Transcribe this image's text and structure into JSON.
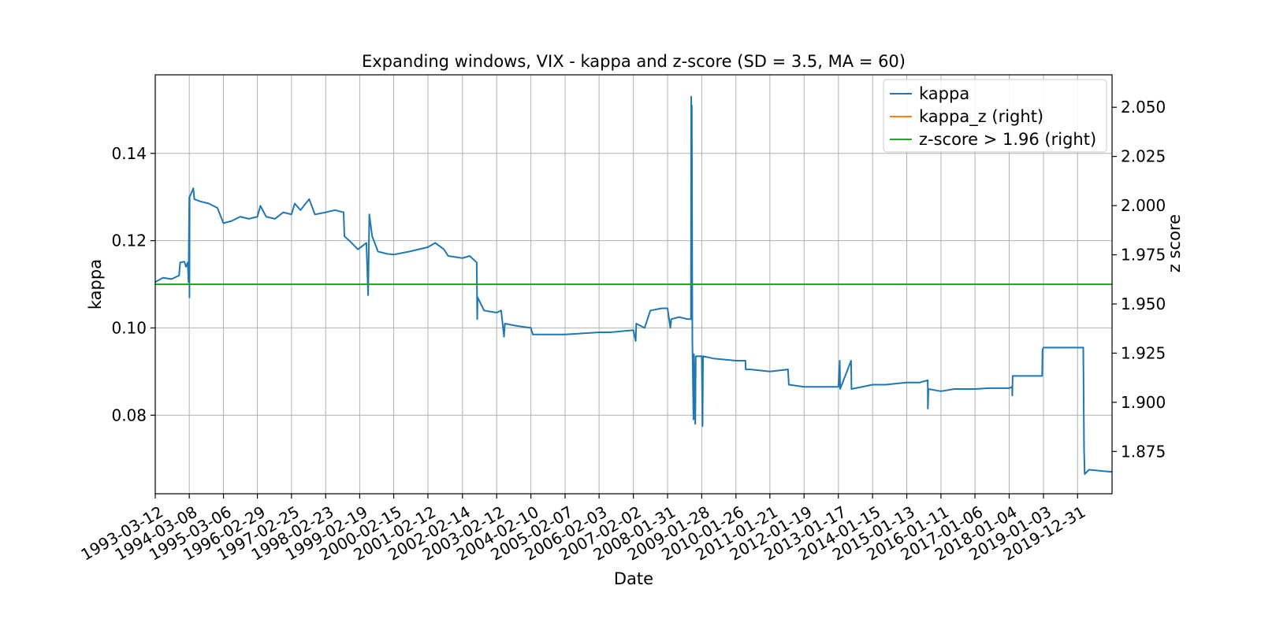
{
  "chart_data": {
    "type": "line",
    "title": "Expanding windows, VIX - kappa and z-score (SD = 3.5, MA = 60)",
    "xlabel": "Date",
    "ylabel": "kappa",
    "y2label": "z score",
    "grid": true,
    "legend_position": "top-right",
    "xlim": [
      "1993-03-12",
      "2020-12-31"
    ],
    "ylim": [
      0.062,
      0.158
    ],
    "y2lim": [
      1.8535,
      2.0665
    ],
    "x_ticks": [
      "1993-03-12",
      "1994-03-08",
      "1995-03-06",
      "1996-02-29",
      "1997-02-25",
      "1998-02-23",
      "1999-02-19",
      "2000-02-15",
      "2001-02-12",
      "2002-02-14",
      "2003-02-12",
      "2004-02-10",
      "2005-02-07",
      "2006-02-03",
      "2007-02-02",
      "2008-01-31",
      "2009-01-28",
      "2010-01-26",
      "2011-01-21",
      "2012-01-19",
      "2013-01-17",
      "2014-01-15",
      "2015-01-13",
      "2016-01-11",
      "2017-01-06",
      "2018-01-04",
      "2019-01-03",
      "2019-12-31"
    ],
    "y_ticks": [
      {
        "value": 0.08,
        "label": "0.08"
      },
      {
        "value": 0.1,
        "label": "0.10"
      },
      {
        "value": 0.12,
        "label": "0.12"
      },
      {
        "value": 0.14,
        "label": "0.14"
      }
    ],
    "y2_ticks": [
      {
        "value": 1.875,
        "label": "1.875"
      },
      {
        "value": 1.9,
        "label": "1.900"
      },
      {
        "value": 1.925,
        "label": "1.925"
      },
      {
        "value": 1.95,
        "label": "1.950"
      },
      {
        "value": 1.975,
        "label": "1.975"
      },
      {
        "value": 2.0,
        "label": "2.000"
      },
      {
        "value": 2.025,
        "label": "2.025"
      },
      {
        "value": 2.05,
        "label": "2.050"
      }
    ],
    "series": [
      {
        "name": "kappa",
        "axis": "left",
        "color": "#1f77b4",
        "points": [
          [
            "1993-03-12",
            0.1105
          ],
          [
            "1993-06-01",
            0.1115
          ],
          [
            "1993-09-01",
            0.1112
          ],
          [
            "1993-11-20",
            0.112
          ],
          [
            "1993-12-01",
            0.115
          ],
          [
            "1994-01-15",
            0.1152
          ],
          [
            "1994-02-01",
            0.114
          ],
          [
            "1994-02-20",
            0.115
          ],
          [
            "1994-02-28",
            0.1105
          ],
          [
            "1994-03-08",
            0.13
          ],
          [
            "1994-03-10",
            0.107
          ],
          [
            "1994-03-12",
            0.13
          ],
          [
            "1994-04-20",
            0.132
          ],
          [
            "1994-05-01",
            0.1295
          ],
          [
            "1994-07-01",
            0.129
          ],
          [
            "1994-10-01",
            0.1285
          ],
          [
            "1995-01-01",
            0.1275
          ],
          [
            "1995-03-06",
            0.124
          ],
          [
            "1995-06-01",
            0.1245
          ],
          [
            "1995-09-01",
            0.1255
          ],
          [
            "1995-12-01",
            0.125
          ],
          [
            "1996-02-29",
            0.1255
          ],
          [
            "1996-04-01",
            0.128
          ],
          [
            "1996-06-01",
            0.1255
          ],
          [
            "1996-09-01",
            0.125
          ],
          [
            "1996-12-01",
            0.1265
          ],
          [
            "1997-02-25",
            0.126
          ],
          [
            "1997-04-01",
            0.1285
          ],
          [
            "1997-06-01",
            0.127
          ],
          [
            "1997-09-01",
            0.1295
          ],
          [
            "1997-11-01",
            0.126
          ],
          [
            "1998-02-23",
            0.1265
          ],
          [
            "1998-06-01",
            0.127
          ],
          [
            "1998-09-01",
            0.1265
          ],
          [
            "1998-09-10",
            0.121
          ],
          [
            "1998-11-01",
            0.12
          ],
          [
            "1999-02-01",
            0.118
          ],
          [
            "1999-05-01",
            0.1195
          ],
          [
            "1999-05-20",
            0.1075
          ],
          [
            "1999-06-01",
            0.126
          ],
          [
            "1999-07-01",
            0.121
          ],
          [
            "1999-09-01",
            0.1175
          ],
          [
            "1999-12-01",
            0.117
          ],
          [
            "2000-02-15",
            0.1168
          ],
          [
            "2000-08-01",
            0.1175
          ],
          [
            "2001-02-12",
            0.1185
          ],
          [
            "2001-05-01",
            0.1195
          ],
          [
            "2001-08-01",
            0.118
          ],
          [
            "2001-09-15",
            0.1165
          ],
          [
            "2002-02-14",
            0.116
          ],
          [
            "2002-05-01",
            0.1165
          ],
          [
            "2002-07-15",
            0.115
          ],
          [
            "2002-07-20",
            0.102
          ],
          [
            "2002-07-25",
            0.107
          ],
          [
            "2002-10-01",
            0.104
          ],
          [
            "2003-02-12",
            0.1035
          ],
          [
            "2003-04-01",
            0.104
          ],
          [
            "2003-05-01",
            0.098
          ],
          [
            "2003-05-10",
            0.101
          ],
          [
            "2003-09-01",
            0.1005
          ],
          [
            "2004-02-10",
            0.1
          ],
          [
            "2004-03-01",
            0.0985
          ],
          [
            "2005-02-07",
            0.0985
          ],
          [
            "2006-02-03",
            0.099
          ],
          [
            "2006-06-01",
            0.099
          ],
          [
            "2007-02-02",
            0.0995
          ],
          [
            "2007-02-27",
            0.097
          ],
          [
            "2007-03-05",
            0.101
          ],
          [
            "2007-06-01",
            0.1
          ],
          [
            "2007-08-01",
            0.104
          ],
          [
            "2007-12-01",
            0.1045
          ],
          [
            "2008-01-31",
            0.1045
          ],
          [
            "2008-03-01",
            0.1
          ],
          [
            "2008-03-10",
            0.102
          ],
          [
            "2008-06-01",
            0.1025
          ],
          [
            "2008-09-01",
            0.102
          ],
          [
            "2008-10-05",
            0.102
          ],
          [
            "2008-10-08",
            0.153
          ],
          [
            "2008-10-11",
            0.14
          ],
          [
            "2008-10-14",
            0.151
          ],
          [
            "2008-10-20",
            0.097
          ],
          [
            "2008-11-01",
            0.079
          ],
          [
            "2008-11-05",
            0.094
          ],
          [
            "2008-11-20",
            0.078
          ],
          [
            "2008-11-25",
            0.0935
          ],
          [
            "2009-01-28",
            0.0935
          ],
          [
            "2009-02-05",
            0.0775
          ],
          [
            "2009-02-10",
            0.0935
          ],
          [
            "2009-06-01",
            0.093
          ],
          [
            "2010-01-26",
            0.0925
          ],
          [
            "2010-05-06",
            0.0925
          ],
          [
            "2010-05-10",
            0.0905
          ],
          [
            "2010-07-01",
            0.0905
          ],
          [
            "2011-01-21",
            0.09
          ],
          [
            "2011-08-01",
            0.0905
          ],
          [
            "2011-08-10",
            0.087
          ],
          [
            "2012-01-19",
            0.0865
          ],
          [
            "2012-07-01",
            0.0865
          ],
          [
            "2013-01-17",
            0.0865
          ],
          [
            "2013-02-01",
            0.0925
          ],
          [
            "2013-02-05",
            0.086
          ],
          [
            "2013-06-01",
            0.0925
          ],
          [
            "2013-06-05",
            0.086
          ],
          [
            "2014-01-15",
            0.087
          ],
          [
            "2014-06-01",
            0.087
          ],
          [
            "2015-01-13",
            0.0875
          ],
          [
            "2015-06-01",
            0.0875
          ],
          [
            "2015-08-24",
            0.088
          ],
          [
            "2015-08-25",
            0.0815
          ],
          [
            "2015-09-01",
            0.086
          ],
          [
            "2016-01-11",
            0.0855
          ],
          [
            "2016-06-01",
            0.086
          ],
          [
            "2017-01-06",
            0.086
          ],
          [
            "2017-06-01",
            0.0862
          ],
          [
            "2018-01-04",
            0.0862
          ],
          [
            "2018-02-05",
            0.0865
          ],
          [
            "2018-02-06",
            0.0845
          ],
          [
            "2018-02-10",
            0.089
          ],
          [
            "2018-06-01",
            0.089
          ],
          [
            "2018-12-20",
            0.089
          ],
          [
            "2018-12-24",
            0.095
          ],
          [
            "2019-01-03",
            0.0955
          ],
          [
            "2019-06-01",
            0.0955
          ],
          [
            "2019-12-31",
            0.0955
          ],
          [
            "2020-03-01",
            0.0955
          ],
          [
            "2020-03-09",
            0.072
          ],
          [
            "2020-03-16",
            0.0665
          ],
          [
            "2020-05-01",
            0.0675
          ],
          [
            "2020-12-31",
            0.067
          ]
        ]
      },
      {
        "name": "kappa_z (right)",
        "axis": "right",
        "color": "#ff7f0e",
        "points": []
      },
      {
        "name": "z-score > 1.96 (right)",
        "axis": "right",
        "color": "#2ca02c",
        "points": [
          [
            "1993-03-12",
            1.96
          ],
          [
            "2020-12-31",
            1.96
          ]
        ]
      }
    ]
  }
}
